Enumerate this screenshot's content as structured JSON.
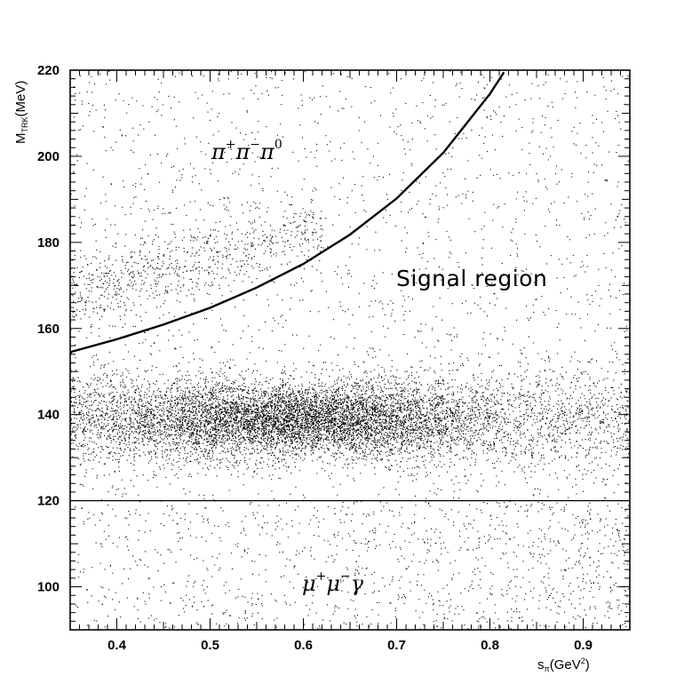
{
  "chart_data": {
    "type": "scatter",
    "title": "",
    "xlabel": {
      "main": "s",
      "sub": "π",
      "unit": "(GeV",
      "unit_sup": "2",
      "close": ")"
    },
    "ylabel": {
      "main": "M",
      "sub": "TRK",
      "unit": "(MeV)"
    },
    "xlim": [
      0.35,
      0.95
    ],
    "ylim": [
      90,
      220
    ],
    "x_ticks": [
      0.4,
      0.5,
      0.6,
      0.7,
      0.8,
      0.9
    ],
    "x_tick_labels": [
      "0.4",
      "0.5",
      "0.6",
      "0.7",
      "0.8",
      "0.9"
    ],
    "y_ticks": [
      100,
      120,
      140,
      160,
      180,
      200,
      220
    ],
    "y_tick_labels": [
      "100",
      "120",
      "140",
      "160",
      "180",
      "200",
      "220"
    ],
    "grid": false,
    "cut_lines": [
      {
        "kind": "horizontal",
        "y": 120
      },
      {
        "kind": "curve",
        "x": [
          0.35,
          0.4,
          0.45,
          0.5,
          0.55,
          0.6,
          0.65,
          0.7,
          0.75,
          0.8,
          0.815
        ],
        "y": [
          154.5,
          157.5,
          160.9,
          164.8,
          169.5,
          175.0,
          181.8,
          190.2,
          200.8,
          214.5,
          219.5
        ]
      }
    ],
    "point_populations": [
      {
        "region": "pi-pi-gamma band",
        "y_center": 139,
        "x_peak": 0.59
      },
      {
        "region": "pi-pi-pi0 band",
        "y_center": "170-185",
        "x_range": [
          0.35,
          0.62
        ]
      },
      {
        "region": "mu-mu-gamma",
        "y_range": [
          90,
          120
        ]
      }
    ],
    "annotations": [
      {
        "id": "pi3",
        "parts": [
          "π",
          "+",
          "π",
          "−",
          "π",
          "0"
        ],
        "x": 0.5,
        "y": 201
      },
      {
        "id": "signal",
        "text": "Signal region",
        "x": 0.7,
        "y": 170
      },
      {
        "id": "mumu",
        "parts": [
          "μ",
          "+",
          "μ",
          "−",
          "γ"
        ],
        "x": 0.6,
        "y": 100
      }
    ]
  }
}
